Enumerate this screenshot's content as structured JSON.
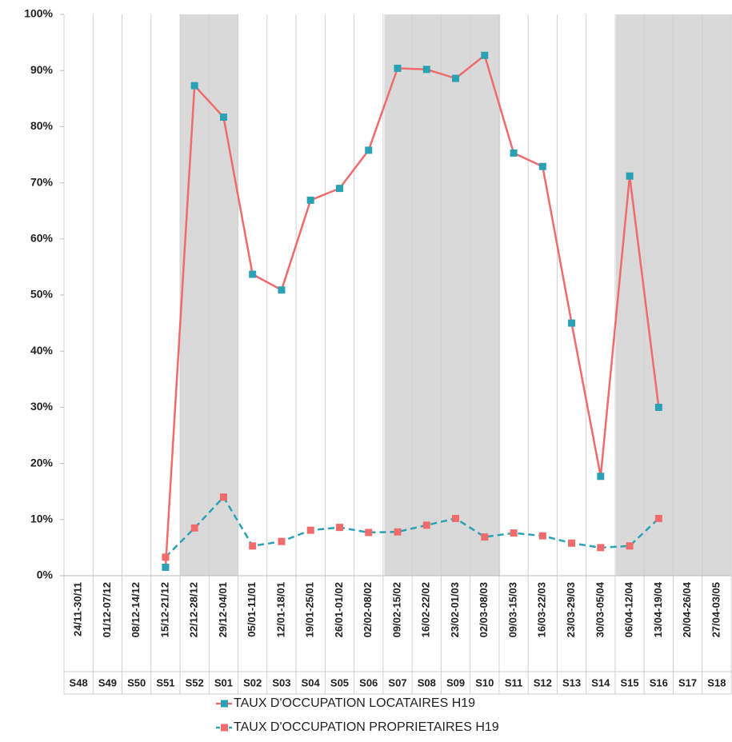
{
  "chart_data": {
    "type": "line",
    "categories": [
      "24/11-30/11",
      "01/12-07/12",
      "08/12-14/12",
      "15/12-21/12",
      "22/12-28/12",
      "29/12-04/01",
      "05/01-11/01",
      "12/01-18/01",
      "19/01-25/01",
      "26/01-01/02",
      "02/02-08/02",
      "09/02-15/02",
      "16/02-22/02",
      "23/02-01/03",
      "02/03-08/03",
      "09/03-15/03",
      "16/03-22/03",
      "23/03-29/03",
      "30/03-05/04",
      "06/04-12/04",
      "13/04-19/04",
      "20/04-26/04",
      "27/04-03/05"
    ],
    "weeks": [
      "S48",
      "S49",
      "S50",
      "S51",
      "S52",
      "S01",
      "S02",
      "S03",
      "S04",
      "S05",
      "S06",
      "S07",
      "S08",
      "S09",
      "S10",
      "S11",
      "S12",
      "S13",
      "S14",
      "S15",
      "S16",
      "S17",
      "S18"
    ],
    "series": [
      {
        "name": "TAUX D'OCCUPATION LOCATAIRES H19",
        "color": "#f06b6b",
        "marker_color": "#2aa1b5",
        "dashed": false,
        "values": [
          null,
          null,
          null,
          1.5,
          87.3,
          81.7,
          53.7,
          50.9,
          66.9,
          69.0,
          75.8,
          90.4,
          90.2,
          88.6,
          92.7,
          75.3,
          72.9,
          45.0,
          17.7,
          71.2,
          30.0,
          null,
          null
        ]
      },
      {
        "name": "TAUX D'OCCUPATION PROPRIETAIRES H19",
        "color": "#2aa1b5",
        "marker_color": "#f06b6b",
        "dashed": true,
        "values": [
          null,
          null,
          null,
          3.3,
          8.5,
          14.0,
          5.3,
          6.1,
          8.1,
          8.6,
          7.7,
          7.8,
          9.0,
          10.2,
          6.9,
          7.6,
          7.1,
          5.8,
          5.0,
          5.3,
          10.2,
          null,
          null
        ]
      }
    ],
    "ylim": [
      0,
      100
    ],
    "yticks": [
      {
        "value": 0,
        "label": "0%"
      },
      {
        "value": 10,
        "label": "10%"
      },
      {
        "value": 20,
        "label": "20%"
      },
      {
        "value": 30,
        "label": "30%"
      },
      {
        "value": 40,
        "label": "40%"
      },
      {
        "value": 50,
        "label": "50%"
      },
      {
        "value": 60,
        "label": "60%"
      },
      {
        "value": 70,
        "label": "70%"
      },
      {
        "value": 80,
        "label": "80%"
      },
      {
        "value": 90,
        "label": "90%"
      },
      {
        "value": 100,
        "label": "100%"
      }
    ],
    "grid": true
  }
}
